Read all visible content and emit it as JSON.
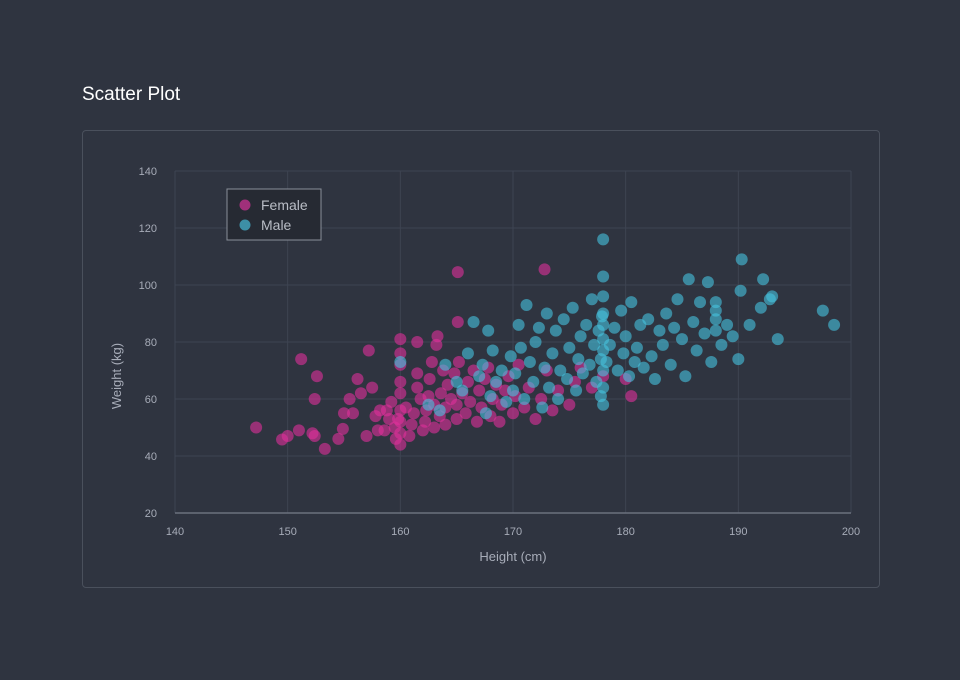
{
  "page": {
    "title": "Scatter Plot"
  },
  "colors": {
    "background": "#2f3440",
    "female": "#e0309b",
    "male": "#46c3e0",
    "grid": "#3e4452",
    "axis_text": "#a7acb8"
  },
  "chart_data": {
    "type": "scatter",
    "title": "",
    "xlabel": "Height (cm)",
    "ylabel": "Weight (kg)",
    "xlim": [
      140,
      200
    ],
    "ylim": [
      20,
      140
    ],
    "xticks": [
      140,
      150,
      160,
      170,
      180,
      190,
      200
    ],
    "yticks": [
      20,
      40,
      60,
      80,
      100,
      120,
      140
    ],
    "grid": true,
    "legend_position": "top-left",
    "series": [
      {
        "name": "Female",
        "color": "#e0309b",
        "points": [
          [
            147.2,
            50
          ],
          [
            149.5,
            45.8
          ],
          [
            150,
            47
          ],
          [
            151,
            49
          ],
          [
            151.2,
            74
          ],
          [
            152.2,
            48
          ],
          [
            152.4,
            47
          ],
          [
            152.6,
            68
          ],
          [
            153.3,
            42.5
          ],
          [
            152.4,
            60
          ],
          [
            154.5,
            46
          ],
          [
            154.9,
            49.5
          ],
          [
            155,
            55
          ],
          [
            155.5,
            60
          ],
          [
            155.8,
            55
          ],
          [
            156.2,
            67
          ],
          [
            156.5,
            62
          ],
          [
            157,
            47
          ],
          [
            157.2,
            77
          ],
          [
            157.5,
            64
          ],
          [
            157.8,
            54
          ],
          [
            158,
            49
          ],
          [
            158.2,
            56
          ],
          [
            158.6,
            49
          ],
          [
            158.8,
            56
          ],
          [
            159,
            53
          ],
          [
            159.2,
            59
          ],
          [
            159.5,
            50
          ],
          [
            159.6,
            46
          ],
          [
            159.8,
            53
          ],
          [
            160,
            44
          ],
          [
            160,
            48
          ],
          [
            160,
            52
          ],
          [
            160,
            56
          ],
          [
            160,
            62
          ],
          [
            160,
            66
          ],
          [
            160,
            72
          ],
          [
            160,
            76
          ],
          [
            160,
            81
          ],
          [
            160.5,
            57
          ],
          [
            160.8,
            47
          ],
          [
            161,
            51
          ],
          [
            161.2,
            55
          ],
          [
            161.5,
            64
          ],
          [
            161.5,
            69
          ],
          [
            161.5,
            80
          ],
          [
            161.8,
            60
          ],
          [
            162,
            49
          ],
          [
            162.2,
            52
          ],
          [
            162.3,
            56
          ],
          [
            162.5,
            61
          ],
          [
            162.6,
            67
          ],
          [
            162.8,
            73
          ],
          [
            163,
            50
          ],
          [
            163,
            58
          ],
          [
            163.2,
            79
          ],
          [
            163.3,
            82
          ],
          [
            163.5,
            54
          ],
          [
            163.6,
            62
          ],
          [
            163.8,
            70
          ],
          [
            164,
            51
          ],
          [
            164,
            57
          ],
          [
            164.2,
            65
          ],
          [
            164.5,
            60
          ],
          [
            164.8,
            69
          ],
          [
            165,
            53
          ],
          [
            165,
            58
          ],
          [
            165.2,
            73
          ],
          [
            165.1,
            87
          ],
          [
            165.1,
            104.5
          ],
          [
            165.5,
            62
          ],
          [
            165.8,
            55
          ],
          [
            166,
            66
          ],
          [
            166.2,
            59
          ],
          [
            166.5,
            70
          ],
          [
            166.8,
            52
          ],
          [
            167,
            63
          ],
          [
            167.2,
            57
          ],
          [
            167.5,
            67
          ],
          [
            167.8,
            71
          ],
          [
            168,
            54
          ],
          [
            168.2,
            60
          ],
          [
            168.5,
            65
          ],
          [
            168.8,
            52
          ],
          [
            169,
            58
          ],
          [
            169.3,
            63
          ],
          [
            169.6,
            68
          ],
          [
            170,
            55
          ],
          [
            170.2,
            61
          ],
          [
            170.5,
            72
          ],
          [
            171,
            57
          ],
          [
            171.4,
            64
          ],
          [
            172,
            53
          ],
          [
            172.5,
            60
          ],
          [
            172.8,
            105.5
          ],
          [
            173,
            70
          ],
          [
            173.5,
            56
          ],
          [
            174,
            63
          ],
          [
            175,
            58
          ],
          [
            175.5,
            66
          ],
          [
            176,
            71
          ],
          [
            177,
            64
          ],
          [
            178,
            68
          ],
          [
            180,
            67
          ],
          [
            180.5,
            61
          ]
        ]
      },
      {
        "name": "Male",
        "color": "#46c3e0",
        "points": [
          [
            160,
            73
          ],
          [
            162.5,
            58
          ],
          [
            163.5,
            56
          ],
          [
            164,
            72
          ],
          [
            165,
            66
          ],
          [
            165.5,
            63
          ],
          [
            166,
            76
          ],
          [
            166.5,
            87
          ],
          [
            167,
            68
          ],
          [
            167.3,
            72
          ],
          [
            167.6,
            55
          ],
          [
            167.8,
            84
          ],
          [
            168,
            61
          ],
          [
            168.2,
            77
          ],
          [
            168.5,
            66
          ],
          [
            169,
            70
          ],
          [
            169.4,
            59
          ],
          [
            169.8,
            75
          ],
          [
            170,
            63
          ],
          [
            170.2,
            69
          ],
          [
            170.5,
            86
          ],
          [
            170.7,
            78
          ],
          [
            171,
            60
          ],
          [
            171.2,
            93
          ],
          [
            171.5,
            73
          ],
          [
            171.8,
            66
          ],
          [
            172,
            80
          ],
          [
            172.3,
            85
          ],
          [
            172.6,
            57
          ],
          [
            172.8,
            71
          ],
          [
            173,
            90
          ],
          [
            173.2,
            64
          ],
          [
            173.5,
            76
          ],
          [
            173.8,
            84
          ],
          [
            174,
            60
          ],
          [
            174.2,
            70
          ],
          [
            174.5,
            88
          ],
          [
            174.8,
            67
          ],
          [
            175,
            78
          ],
          [
            175.3,
            92
          ],
          [
            175.6,
            63
          ],
          [
            175.8,
            74
          ],
          [
            176,
            82
          ],
          [
            176.2,
            69
          ],
          [
            176.5,
            86
          ],
          [
            176.8,
            72
          ],
          [
            177,
            95
          ],
          [
            177.2,
            79
          ],
          [
            177.4,
            66
          ],
          [
            177.6,
            84
          ],
          [
            177.8,
            61
          ],
          [
            177.8,
            74
          ],
          [
            177.9,
            89
          ],
          [
            178,
            58
          ],
          [
            178,
            64
          ],
          [
            178,
            70
          ],
          [
            178,
            77
          ],
          [
            178,
            81
          ],
          [
            178,
            86
          ],
          [
            178,
            90
          ],
          [
            178,
            96
          ],
          [
            178,
            103
          ],
          [
            178,
            116
          ],
          [
            178.3,
            73
          ],
          [
            178.6,
            79
          ],
          [
            179,
            85
          ],
          [
            179.3,
            70
          ],
          [
            179.6,
            91
          ],
          [
            179.8,
            76
          ],
          [
            180,
            82
          ],
          [
            180.3,
            68
          ],
          [
            180.5,
            94
          ],
          [
            180.8,
            73
          ],
          [
            181,
            78
          ],
          [
            181.3,
            86
          ],
          [
            181.6,
            71
          ],
          [
            182,
            88
          ],
          [
            182.3,
            75
          ],
          [
            182.6,
            67
          ],
          [
            183,
            84
          ],
          [
            183.3,
            79
          ],
          [
            183.6,
            90
          ],
          [
            184,
            72
          ],
          [
            184.3,
            85
          ],
          [
            184.6,
            95
          ],
          [
            185,
            81
          ],
          [
            185.3,
            68
          ],
          [
            185.6,
            102
          ],
          [
            186,
            87
          ],
          [
            186.3,
            77
          ],
          [
            186.6,
            94
          ],
          [
            187,
            83
          ],
          [
            187.3,
            101
          ],
          [
            187.6,
            73
          ],
          [
            188,
            84
          ],
          [
            188,
            88
          ],
          [
            188,
            91
          ],
          [
            188,
            94
          ],
          [
            188.5,
            79
          ],
          [
            189,
            86
          ],
          [
            189.5,
            82
          ],
          [
            190,
            74
          ],
          [
            190.2,
            98
          ],
          [
            190.3,
            109
          ],
          [
            191,
            86
          ],
          [
            192,
            92
          ],
          [
            192.2,
            102
          ],
          [
            192.8,
            95
          ],
          [
            193,
            96
          ],
          [
            193.5,
            81
          ],
          [
            197.5,
            91
          ],
          [
            198.5,
            86
          ]
        ]
      }
    ]
  }
}
